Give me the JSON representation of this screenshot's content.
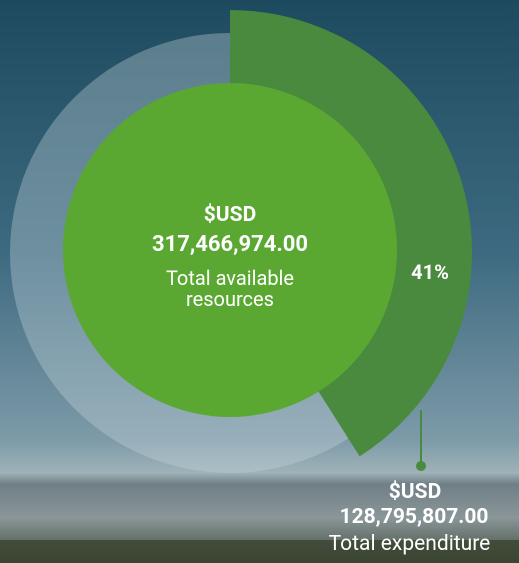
{
  "chart_data": {
    "type": "donut",
    "values": [
      41
    ],
    "value_labels": [
      "41%"
    ],
    "color": "#4a8a3e",
    "center_currency": "$USD",
    "center_amount": "317,466,974.00",
    "center_label": "Total available resources",
    "segment_currency": "$USD",
    "segment_amount": "128,795,807.00",
    "segment_label": "Total expenditure"
  }
}
